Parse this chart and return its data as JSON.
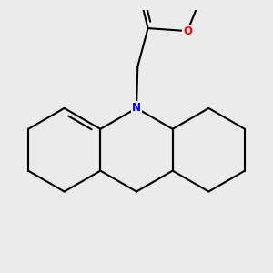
{
  "background_color": "#ebebeb",
  "bond_color": "#000000",
  "N_color": "#0000ff",
  "O_color": "#ff0000",
  "bond_width": 1.5,
  "figsize": [
    3.0,
    3.0
  ],
  "dpi": 100
}
